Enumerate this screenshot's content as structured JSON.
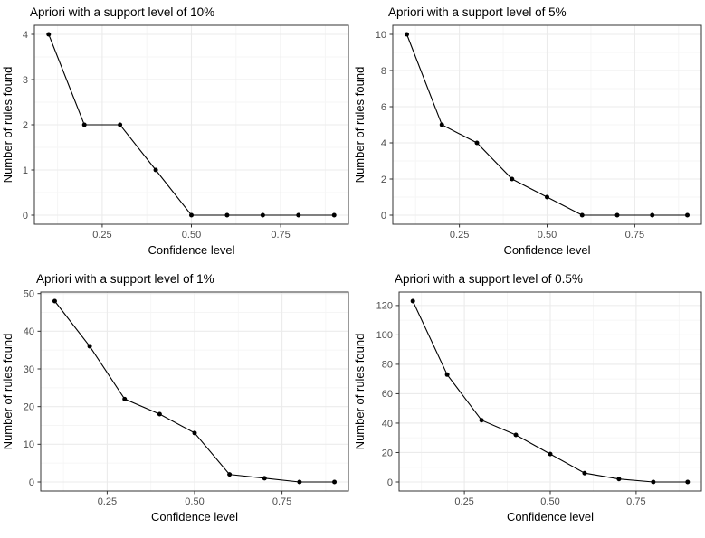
{
  "style": {
    "background": "#ffffff",
    "panel_border": "#333333",
    "grid_major": "#ebebeb",
    "grid_minor": "#f5f5f5",
    "tick_mark_color": "#333333",
    "tick_label_color": "#4d4d4d",
    "title_color": "#000000",
    "axis_title_color": "#000000",
    "line_color": "#000000",
    "point_color": "#000000"
  },
  "chart_data": [
    {
      "type": "line",
      "title": "Apriori with a support level of 10%",
      "xlabel": "Confidence level",
      "ylabel": "Number of rules found",
      "x": [
        0.1,
        0.2,
        0.3,
        0.4,
        0.5,
        0.6,
        0.7,
        0.8,
        0.9
      ],
      "y": [
        4,
        2,
        2,
        1,
        0,
        0,
        0,
        0,
        0
      ],
      "xticks": {
        "values": [
          0.25,
          0.5,
          0.75
        ],
        "labels": [
          "0.25",
          "0.50",
          "0.75"
        ]
      },
      "yticks": [
        0,
        1,
        2,
        3,
        4
      ],
      "xlim": [
        0.06,
        0.94
      ],
      "ylim": [
        -0.2,
        4.2
      ],
      "grid": "major+minor",
      "legend": "none"
    },
    {
      "type": "line",
      "title": "Apriori with a support level of 5%",
      "xlabel": "Confidence level",
      "ylabel": "Number of rules found",
      "x": [
        0.1,
        0.2,
        0.3,
        0.4,
        0.5,
        0.6,
        0.7,
        0.8,
        0.9
      ],
      "y": [
        10,
        5,
        4,
        2,
        1,
        0,
        0,
        0,
        0
      ],
      "xticks": {
        "values": [
          0.25,
          0.5,
          0.75
        ],
        "labels": [
          "0.25",
          "0.50",
          "0.75"
        ]
      },
      "yticks": [
        0,
        2,
        4,
        6,
        8,
        10
      ],
      "xlim": [
        0.06,
        0.94
      ],
      "ylim": [
        -0.5,
        10.5
      ],
      "grid": "major+minor",
      "legend": "none"
    },
    {
      "type": "line",
      "title": "Apriori with a support level of 1%",
      "xlabel": "Confidence level",
      "ylabel": "Number of rules found",
      "x": [
        0.1,
        0.2,
        0.3,
        0.4,
        0.5,
        0.6,
        0.7,
        0.8,
        0.9
      ],
      "y": [
        48,
        36,
        22,
        18,
        13,
        2,
        1,
        0,
        0
      ],
      "xticks": {
        "values": [
          0.25,
          0.5,
          0.75
        ],
        "labels": [
          "0.25",
          "0.50",
          "0.75"
        ]
      },
      "yticks": [
        0,
        10,
        20,
        30,
        40,
        50
      ],
      "xlim": [
        0.06,
        0.94
      ],
      "ylim": [
        -2.4,
        50.4
      ],
      "grid": "major+minor",
      "legend": "none"
    },
    {
      "type": "line",
      "title": "Apriori with a support level of 0.5%",
      "xlabel": "Confidence level",
      "ylabel": "Number of rules found",
      "x": [
        0.1,
        0.2,
        0.3,
        0.4,
        0.5,
        0.6,
        0.7,
        0.8,
        0.9
      ],
      "y": [
        123,
        73,
        42,
        32,
        19,
        6,
        2,
        0,
        0
      ],
      "xticks": {
        "values": [
          0.25,
          0.5,
          0.75
        ],
        "labels": [
          "0.25",
          "0.50",
          "0.75"
        ]
      },
      "yticks": [
        0,
        20,
        40,
        60,
        80,
        100,
        120
      ],
      "xlim": [
        0.06,
        0.94
      ],
      "ylim": [
        -6.15,
        129.15
      ],
      "grid": "major+minor",
      "legend": "none"
    }
  ]
}
